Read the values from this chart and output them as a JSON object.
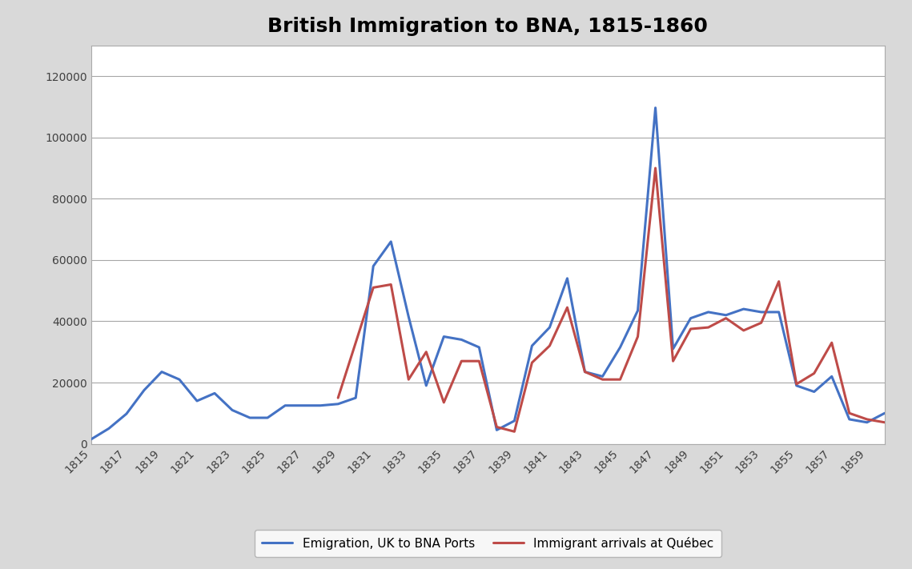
{
  "title": "British Immigration to BNA, 1815-1860",
  "years": [
    1815,
    1816,
    1817,
    1818,
    1819,
    1820,
    1821,
    1822,
    1823,
    1824,
    1825,
    1826,
    1827,
    1828,
    1829,
    1830,
    1831,
    1832,
    1833,
    1834,
    1835,
    1836,
    1837,
    1838,
    1839,
    1840,
    1841,
    1842,
    1843,
    1844,
    1845,
    1846,
    1847,
    1848,
    1849,
    1850,
    1851,
    1852,
    1853,
    1854,
    1855,
    1856,
    1857,
    1858,
    1859,
    1860
  ],
  "blue_series": [
    1500,
    5000,
    9800,
    17500,
    23500,
    21000,
    14000,
    16500,
    11000,
    8500,
    8500,
    12500,
    12500,
    12500,
    13000,
    15000,
    58000,
    66000,
    41500,
    19000,
    35000,
    34000,
    31500,
    4500,
    7500,
    32000,
    38000,
    54000,
    23500,
    22000,
    31500,
    43500,
    109680,
    31000,
    41000,
    43000,
    42000,
    44000,
    43000,
    43000,
    19000,
    17000,
    22000,
    8000,
    7000,
    10000
  ],
  "red_series": [
    null,
    null,
    null,
    null,
    null,
    null,
    null,
    null,
    null,
    null,
    null,
    null,
    null,
    null,
    15000,
    null,
    51000,
    52000,
    21000,
    30000,
    13500,
    27000,
    27000,
    5500,
    4000,
    26500,
    32000,
    44500,
    23500,
    21000,
    21000,
    35000,
    90000,
    27000,
    37500,
    38000,
    41000,
    37000,
    39500,
    53000,
    19500,
    23000,
    33000,
    10000,
    8000,
    7000
  ],
  "blue_color": "#4472C4",
  "red_color": "#BE4B48",
  "blue_label": "Emigration, UK to BNA Ports",
  "red_label": "Immigrant arrivals at Québec",
  "ylim": [
    0,
    130000
  ],
  "yticks": [
    0,
    20000,
    40000,
    60000,
    80000,
    100000,
    120000
  ],
  "fig_background_color": "#D9D9D9",
  "plot_background_color": "#FFFFFF",
  "grid_color": "#A6A6A6",
  "title_fontsize": 18
}
